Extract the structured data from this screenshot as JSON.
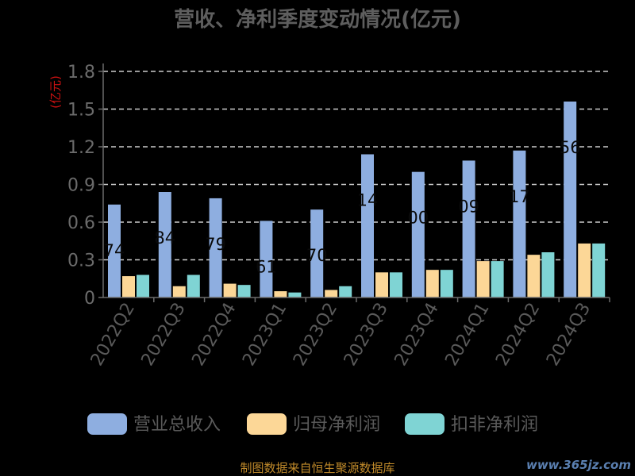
{
  "title": "营收、净利季度变动情况(亿元)",
  "unit_label": "(亿元)",
  "source_text": "制图数据来自恒生聚源数据库",
  "watermark_text": "www.365jz.com",
  "colors": {
    "revenue": "#8eaee0",
    "net_profit": "#fcd797",
    "deducted_profit": "#7fd4d4",
    "grid": "#cccccc",
    "axis": "#6b6b6b"
  },
  "chart_data": {
    "type": "bar",
    "title": "营收、净利季度变动情况(亿元)",
    "ylabel": "(亿元)",
    "xlabel": "",
    "ylim": [
      0,
      1.8
    ],
    "yticks": [
      "0",
      "0.3",
      "0.6",
      "0.9",
      "1.2",
      "1.5",
      "1.8"
    ],
    "grid": true,
    "legend": "bottom",
    "categories": [
      "2022Q2",
      "2022Q3",
      "2022Q4",
      "2023Q1",
      "2023Q2",
      "2023Q3",
      "2023Q4",
      "2024Q1",
      "2024Q2",
      "2024Q3"
    ],
    "series": [
      {
        "name": "营业总收入",
        "values": [
          0.74,
          0.84,
          0.79,
          0.61,
          0.7,
          1.14,
          1.0,
          1.09,
          1.17,
          1.56
        ]
      },
      {
        "name": "归母净利润",
        "values": [
          0.17,
          0.09,
          0.11,
          0.05,
          0.06,
          0.2,
          0.22,
          0.29,
          0.34,
          0.43
        ]
      },
      {
        "name": "扣非净利润",
        "values": [
          0.18,
          0.18,
          0.1,
          0.04,
          0.09,
          0.2,
          0.22,
          0.29,
          0.36,
          0.43
        ]
      }
    ],
    "data_labels": [
      "74",
      "84",
      "79",
      "61",
      "70",
      "14",
      "00",
      "09",
      "17",
      "56"
    ]
  }
}
